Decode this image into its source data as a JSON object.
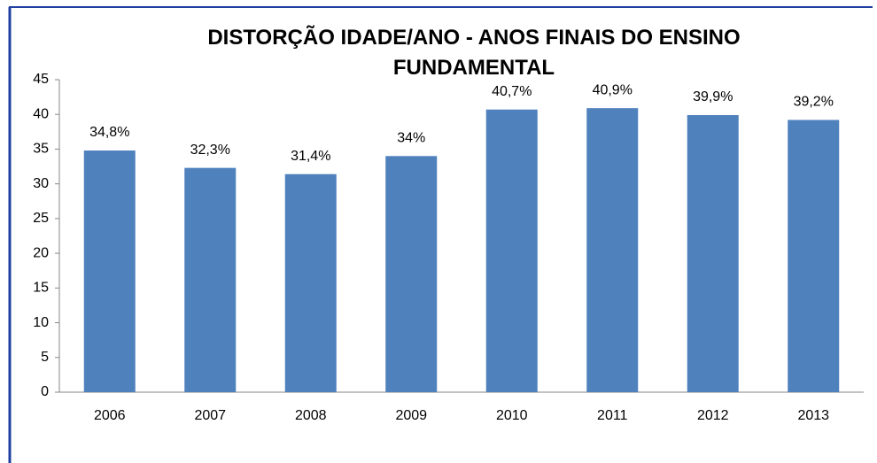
{
  "chart_data": {
    "type": "bar",
    "title": "DISTORÇÃO IDADE/ANO - ANOS FINAIS DO ENSINO FUNDAMENTAL",
    "categories": [
      "2006",
      "2007",
      "2008",
      "2009",
      "2010",
      "2011",
      "2012",
      "2013"
    ],
    "values": [
      34.8,
      32.3,
      31.4,
      34,
      40.7,
      40.9,
      39.9,
      39.2
    ],
    "value_labels": [
      "34,8%",
      "32,3%",
      "31,4%",
      "34%",
      "40,7%",
      "40,9%",
      "39,9%",
      "39,2%"
    ],
    "color": "#4f81bd",
    "ylim": [
      0,
      45
    ],
    "yticks": [
      0,
      5,
      10,
      15,
      20,
      25,
      30,
      35,
      40,
      45
    ],
    "grid": false
  }
}
